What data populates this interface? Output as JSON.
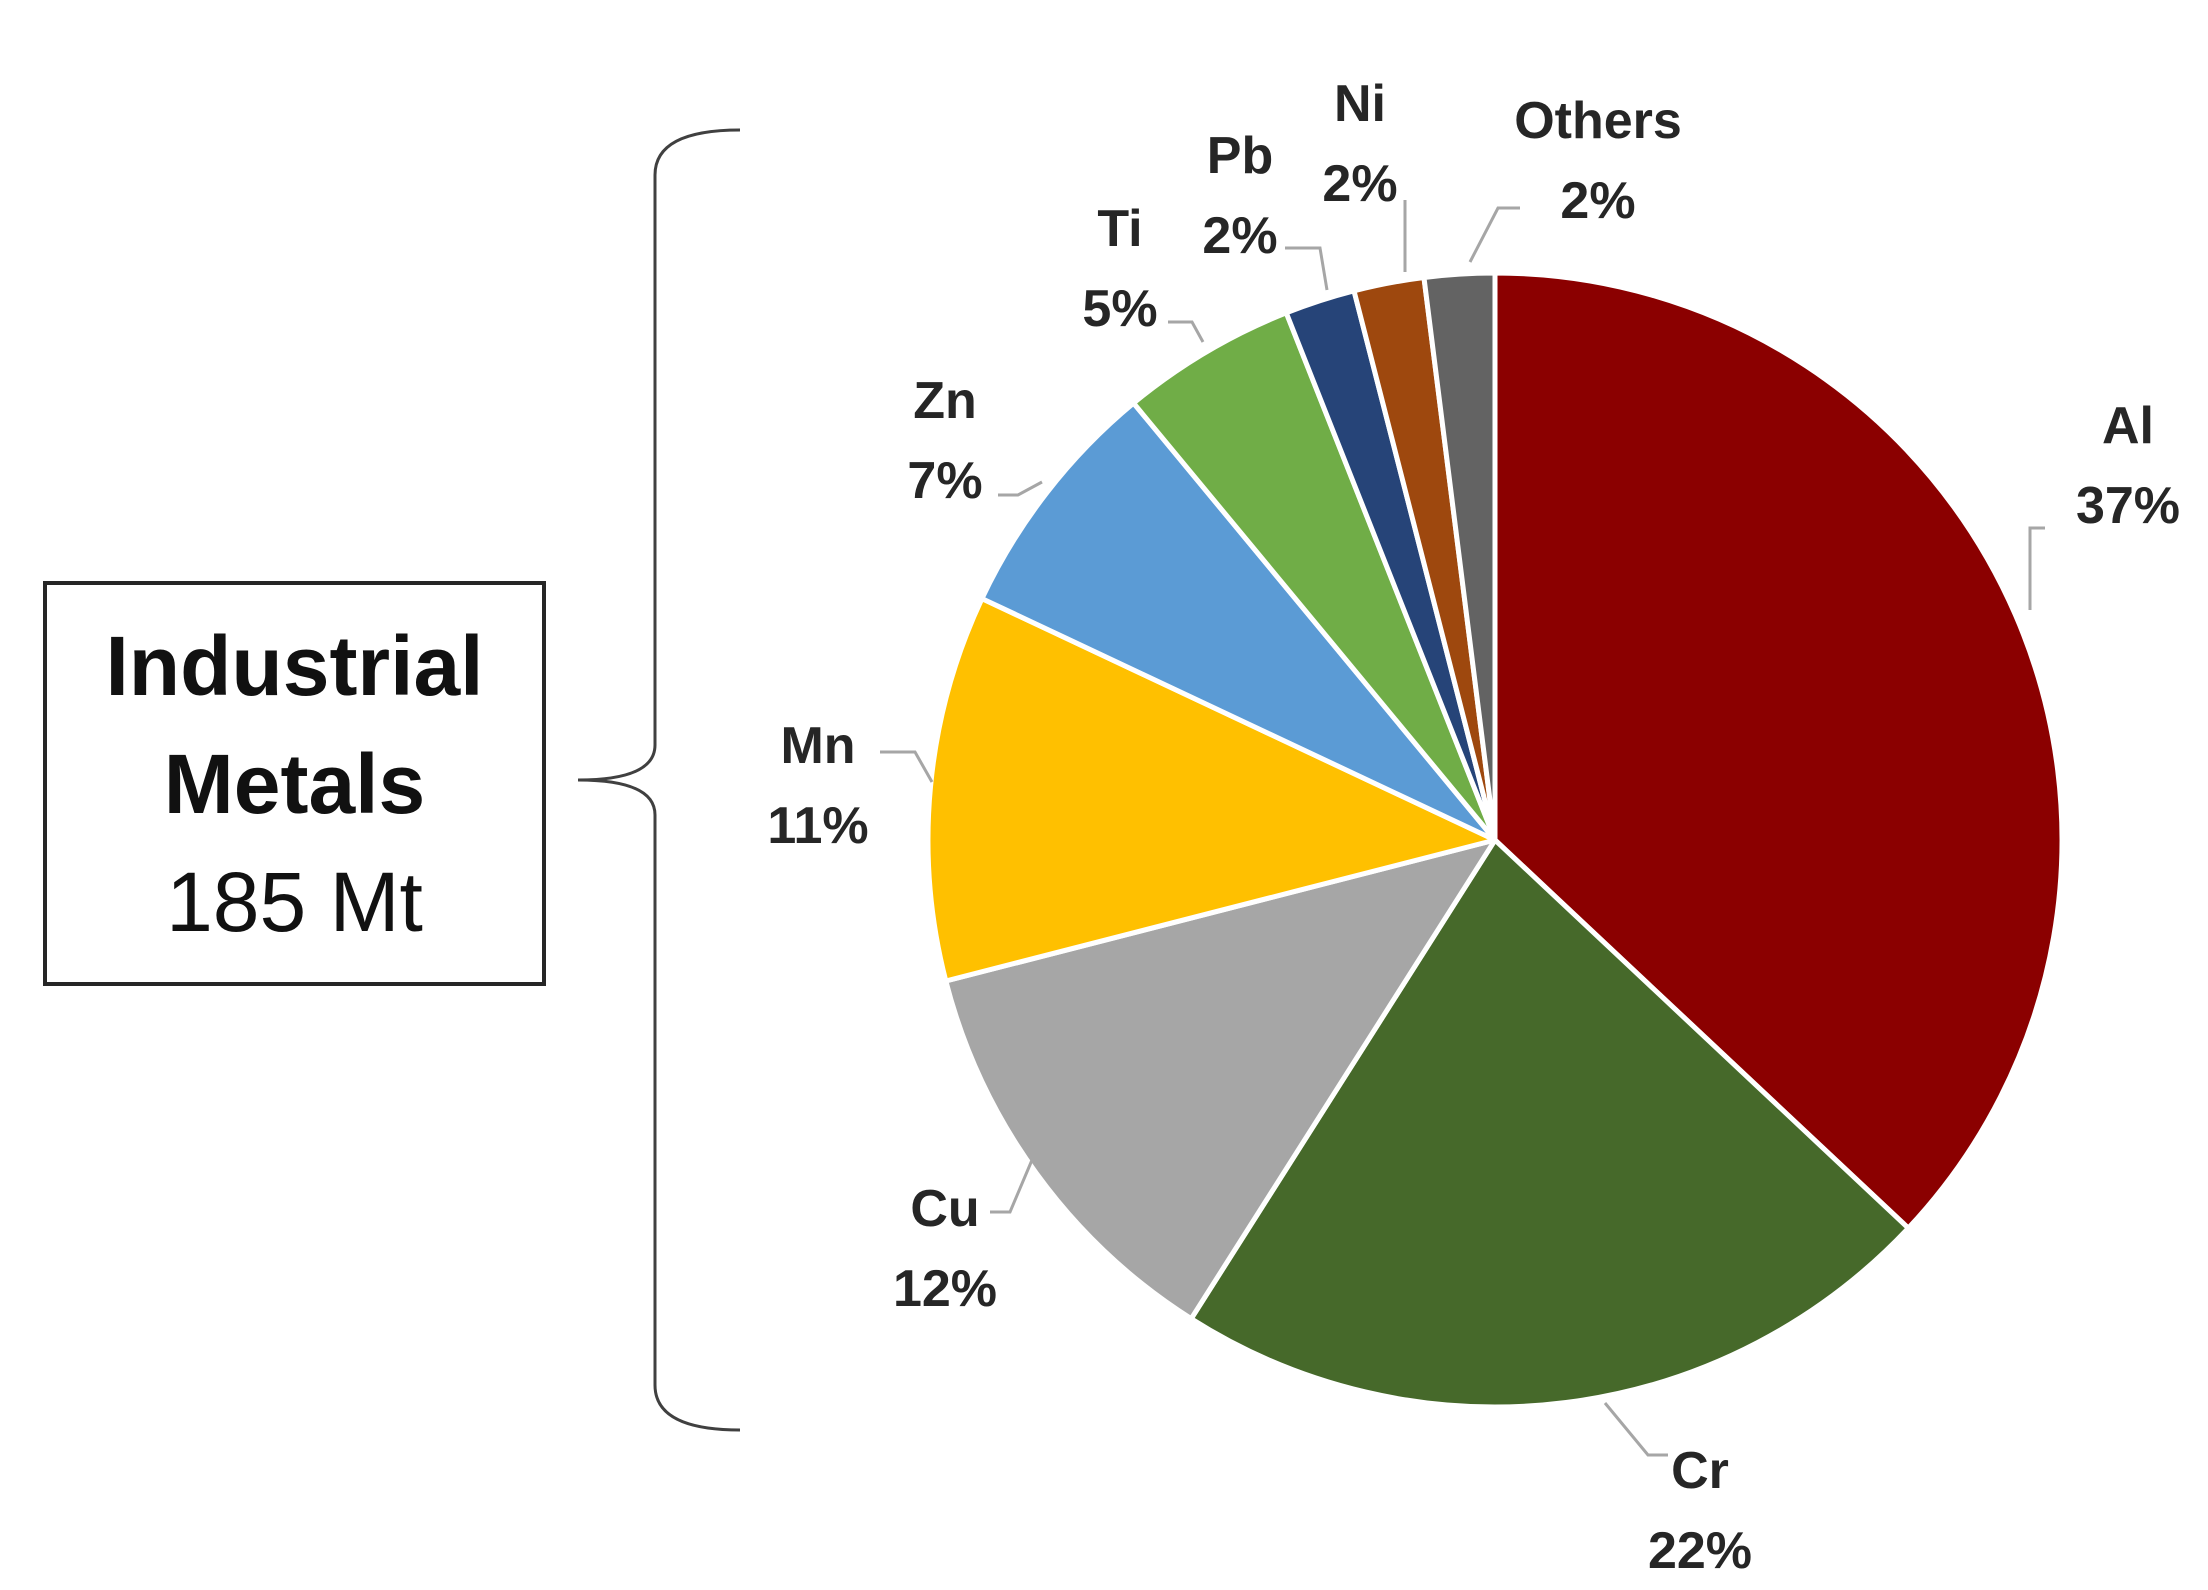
{
  "callout": {
    "title_line1": "Industrial",
    "title_line2": "Metals",
    "value": "185 Mt"
  },
  "chart_data": {
    "type": "pie",
    "start": "12 o'clock, clockwise",
    "slices": [
      {
        "name": "Al",
        "value": 37,
        "label": "37%",
        "color": "#8B0000"
      },
      {
        "name": "Cr",
        "value": 22,
        "label": "22%",
        "color": "#46692A"
      },
      {
        "name": "Cu",
        "value": 12,
        "label": "12%",
        "color": "#A6A6A6"
      },
      {
        "name": "Mn",
        "value": 11,
        "label": "11%",
        "color": "#FFC000"
      },
      {
        "name": "Zn",
        "value": 7,
        "label": "7%",
        "color": "#5B9BD5"
      },
      {
        "name": "Ti",
        "value": 5,
        "label": "5%",
        "color": "#70AD47"
      },
      {
        "name": "Pb",
        "value": 2,
        "label": "2%",
        "color": "#264478"
      },
      {
        "name": "Ni",
        "value": 2,
        "label": "2%",
        "color": "#9E480E"
      },
      {
        "name": "Others",
        "value": 2,
        "label": "2%",
        "color": "#636363"
      }
    ]
  }
}
